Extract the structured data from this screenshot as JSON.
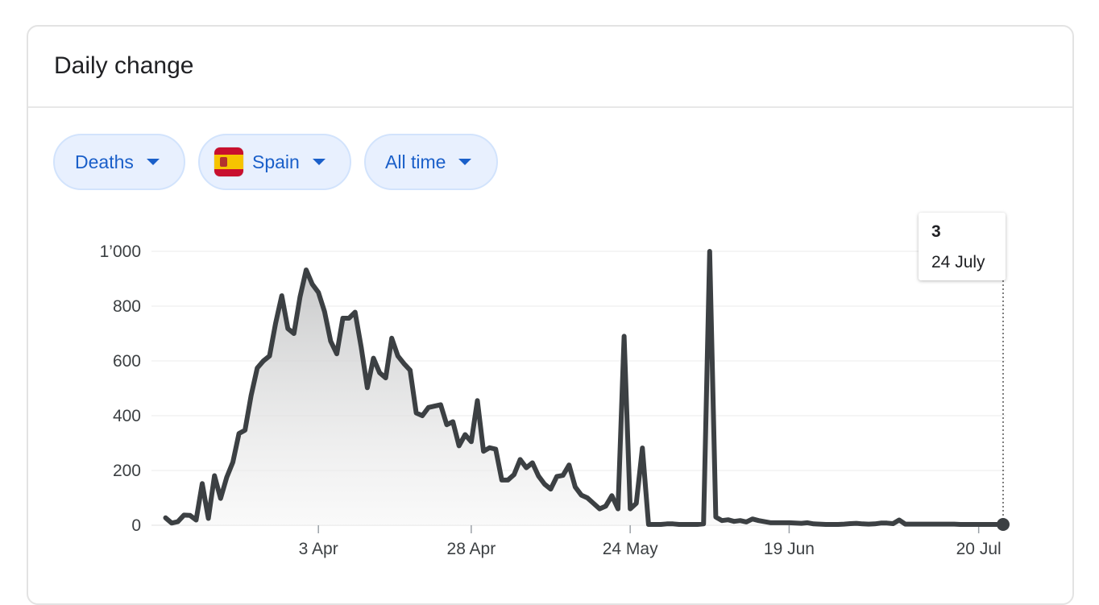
{
  "card": {
    "title": "Daily change"
  },
  "filters": {
    "metric": "Deaths",
    "region": "Spain",
    "region_flag": "spain-flag",
    "range": "All time"
  },
  "tooltip": {
    "value": "3",
    "date": "24 July"
  },
  "colors": {
    "line": "#3c4043",
    "chip_text": "#1a5fc9",
    "chip_bg": "#e8f0fe",
    "grid": "#ebebeb"
  },
  "chart_data": {
    "type": "area",
    "title": "",
    "xlabel": "",
    "ylabel": "",
    "ylim": [
      0,
      1000
    ],
    "y_ticks": [
      0,
      200,
      400,
      600,
      800,
      1000
    ],
    "y_tick_labels": [
      "0",
      "200",
      "400",
      "600",
      "800",
      "1’000"
    ],
    "x_ticks": [
      {
        "day": 93,
        "label": "3 Apr"
      },
      {
        "day": 118,
        "label": "28 Apr"
      },
      {
        "day": 144,
        "label": "24 May"
      },
      {
        "day": 170,
        "label": "19 Jun"
      },
      {
        "day": 201,
        "label": "20 Jul"
      }
    ],
    "grid": true,
    "legend": "none",
    "series": [
      {
        "x": [
          68,
          69,
          70,
          71,
          72,
          73,
          74,
          75,
          76,
          77,
          78,
          79,
          80,
          81,
          82,
          83,
          84,
          85,
          86,
          87,
          88,
          89,
          90,
          91,
          92,
          93,
          94,
          95,
          96,
          97,
          98,
          99,
          100,
          101,
          102,
          103,
          104,
          105,
          106,
          107,
          108,
          109,
          110,
          111,
          112,
          113,
          114,
          115,
          116,
          117,
          118,
          119,
          120,
          121,
          122,
          123,
          124,
          125,
          126,
          127,
          128,
          129,
          130,
          131,
          132,
          133,
          134,
          135,
          136,
          137,
          138,
          139,
          140,
          141,
          142,
          143,
          144,
          145,
          146,
          147,
          148,
          149,
          150,
          151,
          152,
          153,
          154,
          155,
          156,
          157,
          158,
          159,
          160,
          161,
          162,
          163,
          164,
          165,
          166,
          167,
          168,
          169,
          170,
          171,
          172,
          173,
          174,
          175,
          176,
          177,
          178,
          179,
          180,
          181,
          182,
          183,
          184,
          185,
          186,
          187,
          188,
          189,
          190,
          191,
          192,
          193,
          194,
          195,
          196,
          197,
          198,
          199,
          200,
          201,
          202,
          203,
          204,
          205
        ],
        "values": [
          27,
          8,
          13,
          37,
          36,
          19,
          152,
          25,
          181,
          98,
          175,
          230,
          335,
          347,
          474,
          574,
          600,
          618,
          738,
          838,
          718,
          700,
          834,
          932,
          880,
          850,
          780,
          672,
          626,
          756,
          756,
          778,
          650,
          502,
          610,
          557,
          538,
          683,
          618,
          590,
          566,
          410,
          400,
          430,
          435,
          440,
          367,
          378,
          290,
          331,
          305,
          455,
          270,
          283,
          278,
          165,
          165,
          185,
          240,
          210,
          228,
          180,
          150,
          132,
          178,
          182,
          220,
          140,
          110,
          100,
          80,
          60,
          70,
          108,
          60,
          690,
          60,
          80,
          282,
          3,
          3,
          3,
          5,
          5,
          3,
          3,
          3,
          3,
          5,
          1000,
          30,
          17,
          20,
          14,
          17,
          12,
          23,
          17,
          13,
          9,
          9,
          9,
          9,
          8,
          7,
          9,
          5,
          4,
          3,
          3,
          3,
          4,
          6,
          7,
          5,
          4,
          5,
          8,
          8,
          6,
          19,
          4,
          4,
          4,
          4,
          4,
          4,
          4,
          4,
          4,
          3,
          3,
          3,
          3,
          3,
          3,
          3,
          3
        ]
      }
    ]
  }
}
